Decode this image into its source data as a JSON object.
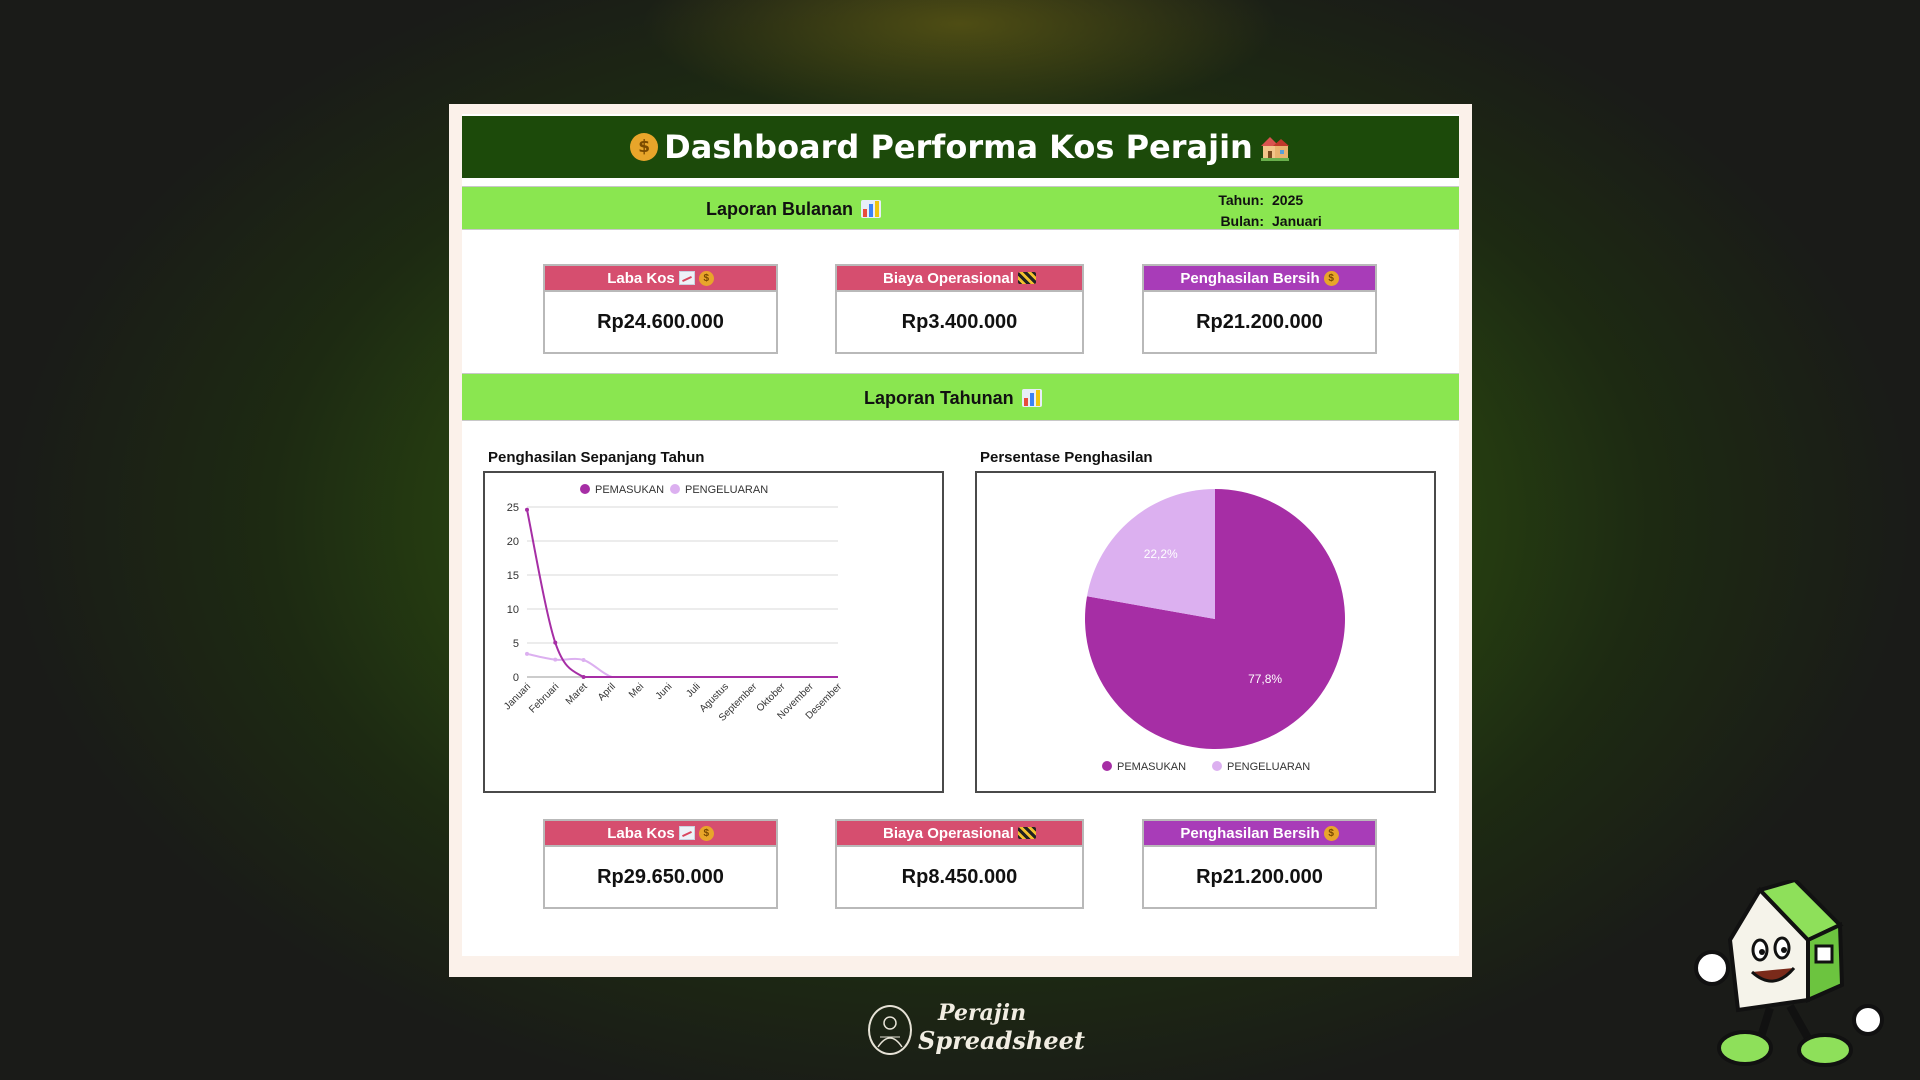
{
  "dashboard": {
    "title": "Dashboard Performa Kos Perajin"
  },
  "monthly": {
    "title": "Laporan Bulanan",
    "year_label": "Tahun:",
    "year_value": "2025",
    "month_label": "Bulan:",
    "month_value": "Januari",
    "cards": [
      {
        "label": "Laba Kos",
        "value": "Rp24.600.000"
      },
      {
        "label": "Biaya Operasional",
        "value": "Rp3.400.000"
      },
      {
        "label": "Penghasilan Bersih",
        "value": "Rp21.200.000"
      }
    ]
  },
  "yearly": {
    "title": "Laporan Tahunan",
    "line_chart_title": "Penghasilan Sepanjang Tahun",
    "pie_chart_title": "Persentase Penghasilan",
    "cards": [
      {
        "label": "Laba Kos",
        "value": "Rp29.650.000"
      },
      {
        "label": "Biaya Operasional",
        "value": "Rp8.450.000"
      },
      {
        "label": "Penghasilan Bersih",
        "value": "Rp21.200.000"
      }
    ]
  },
  "colors": {
    "title_bar": "#1c4a0a",
    "section_bar": "#8ae650",
    "card_pink": "#d64e6f",
    "card_purple": "#a83cb8",
    "series_pemasukan": "#a62ea5",
    "series_pengeluaran": "#dcb0f0"
  },
  "brand": {
    "line1": "Perajin",
    "line2": "Spreadsheet"
  },
  "chart_data": [
    {
      "type": "line",
      "categories": [
        "Januari",
        "Februari",
        "Maret",
        "April",
        "Mei",
        "Juni",
        "Juli",
        "Agustus",
        "September",
        "Oktober",
        "November",
        "Desember"
      ],
      "series": [
        {
          "name": "PEMASUKAN",
          "values": [
            24.6,
            5.05,
            0,
            0,
            0,
            0,
            0,
            0,
            0,
            0,
            0,
            0
          ]
        },
        {
          "name": "PENGELUARAN",
          "values": [
            3.4,
            2.55,
            2.5,
            0,
            0,
            0,
            0,
            0,
            0,
            0,
            0,
            0
          ]
        }
      ],
      "yticks": [
        0,
        5,
        10,
        15,
        20,
        25
      ],
      "ylim": [
        0,
        25
      ],
      "grid": true,
      "legend": "top"
    },
    {
      "type": "pie",
      "slices": [
        {
          "name": "PEMASUKAN",
          "value": 77.8,
          "label": "77,8%"
        },
        {
          "name": "PENGELUARAN",
          "value": 22.2,
          "label": "22,2%"
        }
      ],
      "legend": "bottom"
    }
  ]
}
